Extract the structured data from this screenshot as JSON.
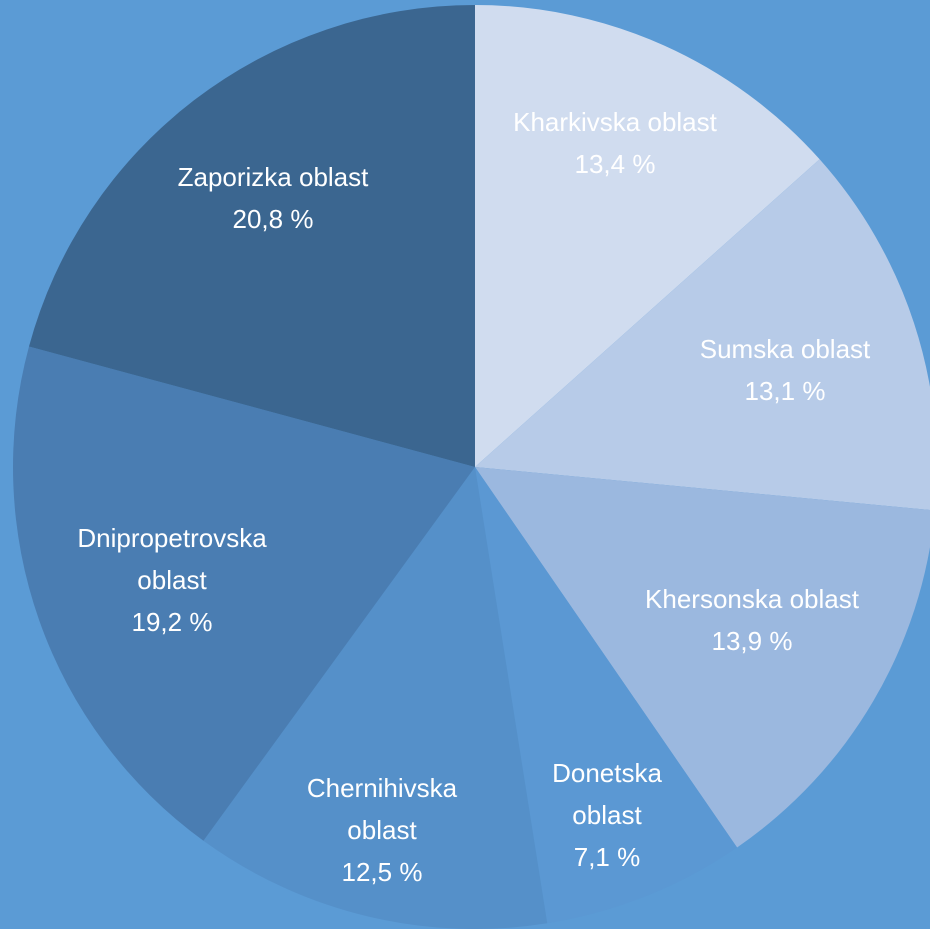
{
  "chart_data": {
    "type": "pie",
    "categories": [
      "Kharkivska oblast",
      "Sumska oblast",
      "Khersonska oblast",
      "Donetska oblast",
      "Chernihivska oblast",
      "Dnipropetrovska oblast",
      "Zaporizka oblast"
    ],
    "values": [
      13.4,
      13.1,
      13.9,
      7.1,
      12.5,
      19.2,
      20.8
    ],
    "value_labels": [
      "13,4 %",
      "13,1 %",
      "13,9 %",
      "7,1 %",
      "12,5 %",
      "19,2 %",
      "20,8 %"
    ],
    "colors": [
      "#d0dcef",
      "#b7cbe8",
      "#9bb8df",
      "#5b98d3",
      "#5590c9",
      "#4a7db2",
      "#3b6690"
    ]
  }
}
